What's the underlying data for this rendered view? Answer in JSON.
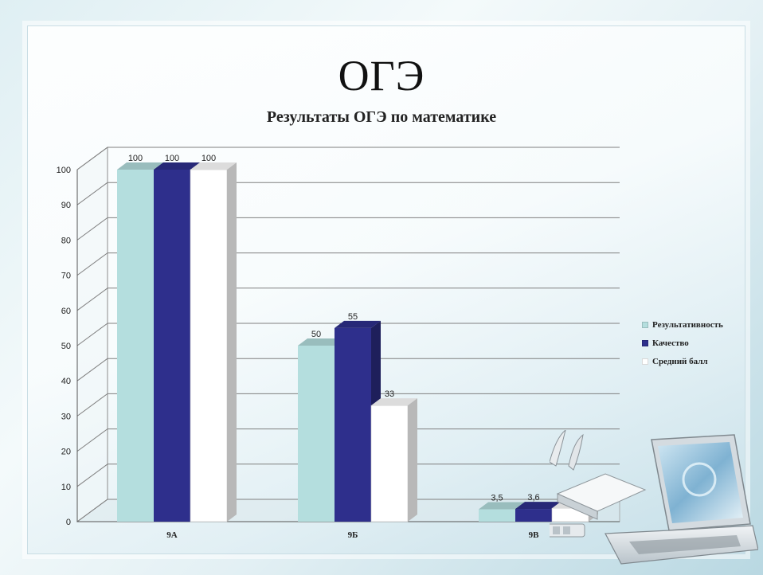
{
  "slide": {
    "title": "ОГЭ"
  },
  "chart_data": {
    "type": "bar",
    "title": "Результаты ОГЭ по математике",
    "categories": [
      "9А",
      "9Б",
      "9В"
    ],
    "series": [
      {
        "name": "Результативность",
        "values": [
          100,
          50,
          3.5
        ],
        "labels": [
          "100",
          "50",
          "3,5"
        ],
        "color": "#b4dede"
      },
      {
        "name": "Качество",
        "values": [
          100,
          55,
          3.6
        ],
        "labels": [
          "100",
          "55",
          "3,6"
        ],
        "color": "#2e2f8c"
      },
      {
        "name": "Средний балл",
        "values": [
          100,
          33,
          3.8
        ],
        "labels": [
          "100",
          "33",
          "3,8"
        ],
        "color": "#ffffff"
      }
    ],
    "yticks": [
      "0",
      "10",
      "20",
      "30",
      "40",
      "50",
      "60",
      "70",
      "80",
      "90",
      "100"
    ],
    "ylim": [
      0,
      100
    ],
    "grid": true,
    "legend_position": "right",
    "three_d": true
  }
}
